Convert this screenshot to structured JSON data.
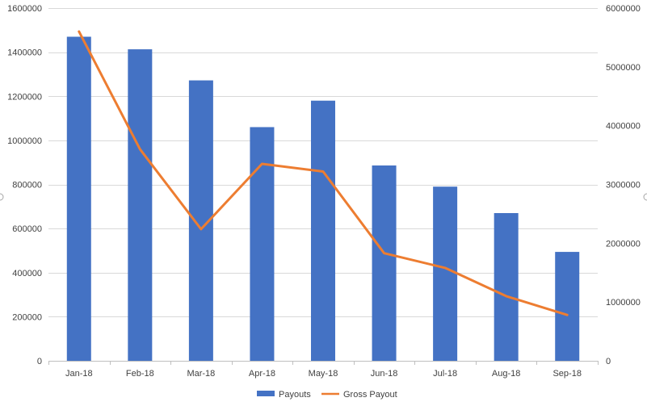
{
  "chart_data": {
    "type": "bar",
    "title": "",
    "categories": [
      "Jan-18",
      "Feb-18",
      "Mar-18",
      "Apr-18",
      "May-18",
      "Jun-18",
      "Jul-18",
      "Aug-18",
      "Sep-18"
    ],
    "series": [
      {
        "name": "Payouts",
        "type": "bar",
        "axis": "left",
        "color": "#4472c4",
        "values": [
          1470000,
          1413000,
          1272000,
          1060000,
          1180000,
          886000,
          790000,
          670000,
          494000
        ]
      },
      {
        "name": "Gross Payout",
        "type": "line",
        "axis": "right",
        "color": "#ed7d31",
        "values": [
          5600000,
          3600000,
          2240000,
          3350000,
          3220000,
          1830000,
          1580000,
          1100000,
          780000
        ]
      }
    ],
    "y_left": {
      "min": 0,
      "max": 1600000,
      "step": 200000,
      "tick_labels": [
        "0",
        "200000",
        "400000",
        "600000",
        "800000",
        "1000000",
        "1200000",
        "1400000",
        "1600000"
      ]
    },
    "y_right": {
      "min": 0,
      "max": 6000000,
      "step": 1000000,
      "tick_labels": [
        "0",
        "1000000",
        "2000000",
        "3000000",
        "4000000",
        "5000000",
        "6000000"
      ]
    },
    "grid": true,
    "legend_position": "bottom"
  }
}
